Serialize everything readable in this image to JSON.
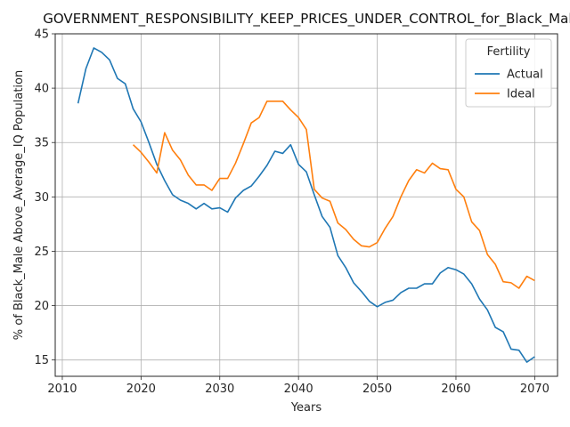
{
  "chart_data": {
    "type": "line",
    "title": "GOVERNMENT_RESPONSIBILITY_KEEP_PRICES_UNDER_CONTROL_for_Black_Male",
    "xlabel": "Years",
    "ylabel": "% of Black_Male Above_Average_IQ Population",
    "xlim": [
      2009.1,
      2072.9
    ],
    "ylim": [
      13.5,
      45.0
    ],
    "xticks": [
      2010,
      2020,
      2030,
      2040,
      2050,
      2060,
      2070
    ],
    "yticks": [
      15,
      20,
      25,
      30,
      35,
      40,
      45
    ],
    "grid": true,
    "legend": {
      "title": "Fertility",
      "placement": "top-right"
    },
    "series": [
      {
        "name": "Actual",
        "color": "#1f77b4",
        "x": [
          2012,
          2013,
          2014,
          2015,
          2016,
          2017,
          2018,
          2019,
          2020,
          2021,
          2022,
          2023,
          2024,
          2025,
          2026,
          2027,
          2028,
          2029,
          2030,
          2031,
          2032,
          2033,
          2034,
          2035,
          2036,
          2037,
          2038,
          2039,
          2040,
          2041,
          2042,
          2043,
          2044,
          2045,
          2046,
          2047,
          2048,
          2049,
          2050,
          2051,
          2052,
          2053,
          2054,
          2055,
          2056,
          2057,
          2058,
          2059,
          2060,
          2061,
          2062,
          2063,
          2064,
          2065,
          2066,
          2067,
          2068,
          2069,
          2070
        ],
        "y": [
          38.6,
          41.8,
          43.7,
          43.3,
          42.6,
          40.9,
          40.4,
          38.1,
          36.9,
          35.0,
          33.0,
          31.5,
          30.2,
          29.7,
          29.4,
          28.9,
          29.4,
          28.9,
          29.0,
          28.6,
          29.9,
          30.6,
          31.0,
          31.9,
          32.9,
          34.2,
          34.0,
          34.8,
          33.0,
          32.3,
          30.2,
          28.2,
          27.2,
          24.6,
          23.5,
          22.1,
          21.3,
          20.4,
          19.9,
          20.3,
          20.5,
          21.2,
          21.6,
          21.6,
          22.0,
          22.0,
          23.0,
          23.5,
          23.3,
          22.9,
          22.0,
          20.6,
          19.6,
          18.0,
          17.6,
          16.0,
          15.9,
          14.8,
          15.3
        ]
      },
      {
        "name": "Ideal",
        "color": "#ff7f0e",
        "x": [
          2019,
          2020,
          2021,
          2022,
          2023,
          2024,
          2025,
          2026,
          2027,
          2028,
          2029,
          2030,
          2031,
          2032,
          2033,
          2034,
          2035,
          2036,
          2037,
          2038,
          2039,
          2040,
          2041,
          2042,
          2043,
          2044,
          2045,
          2046,
          2047,
          2048,
          2049,
          2050,
          2051,
          2052,
          2053,
          2054,
          2055,
          2056,
          2057,
          2058,
          2059,
          2060,
          2061,
          2062,
          2063,
          2064,
          2065,
          2066,
          2067,
          2068,
          2069,
          2070
        ],
        "y": [
          34.8,
          34.1,
          33.2,
          32.2,
          35.9,
          34.3,
          33.4,
          32.0,
          31.1,
          31.1,
          30.6,
          31.7,
          31.7,
          33.1,
          34.9,
          36.8,
          37.3,
          38.8,
          38.8,
          38.8,
          38.0,
          37.3,
          36.2,
          30.7,
          29.9,
          29.6,
          27.6,
          27.0,
          26.1,
          25.5,
          25.4,
          25.8,
          27.1,
          28.2,
          30.0,
          31.5,
          32.5,
          32.2,
          33.1,
          32.6,
          32.5,
          30.7,
          30.0,
          27.7,
          26.9,
          24.7,
          23.8,
          22.2,
          22.1,
          21.6,
          22.7,
          22.3
        ]
      }
    ]
  }
}
